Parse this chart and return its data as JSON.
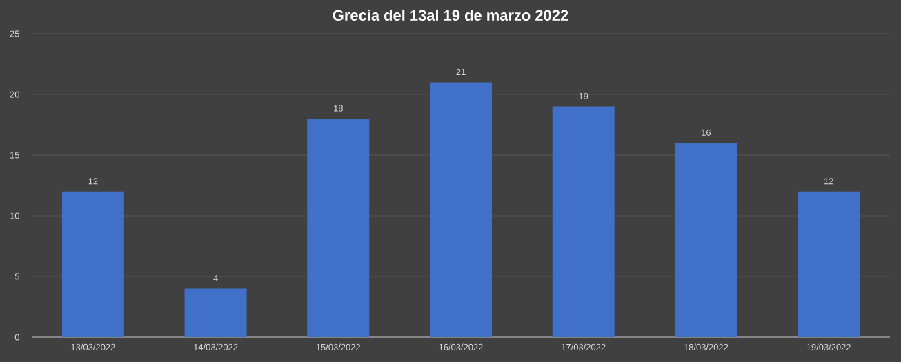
{
  "chart_data": {
    "type": "bar",
    "title": "Grecia del 13al 19 de marzo 2022",
    "categories": [
      "13/03/2022",
      "14/03/2022",
      "15/03/2022",
      "16/03/2022",
      "17/03/2022",
      "18/03/2022",
      "19/03/2022"
    ],
    "values": [
      12,
      4,
      18,
      21,
      19,
      16,
      12
    ],
    "color": "#4070c8",
    "ylim": [
      0,
      25
    ],
    "yticks": [
      0,
      5,
      10,
      15,
      20,
      25
    ],
    "grid": "y",
    "data_labels": true
  }
}
